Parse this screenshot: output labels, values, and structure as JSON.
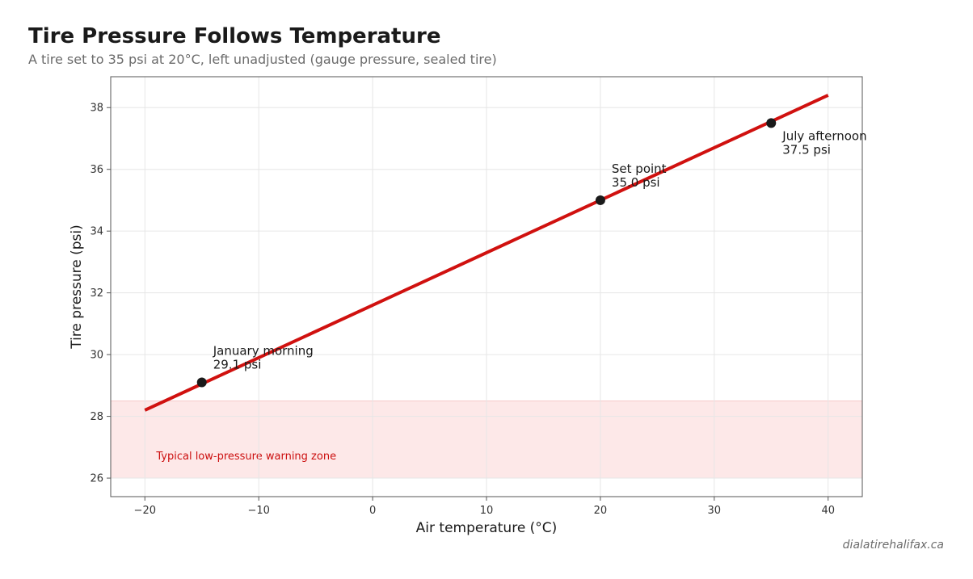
{
  "header": {
    "title": "Tire Pressure Follows Temperature",
    "subtitle": "A tire set to 35 psi at 20°C, left unadjusted (gauge pressure, sealed tire)"
  },
  "footer": {
    "source": "dialatirehalifax.ca"
  },
  "colors": {
    "line": "#d0110f",
    "point": "#1a1a1a",
    "zone_fill": "#fde8e8",
    "zone_text": "#cc0f0f",
    "grid": "#e6e6e6",
    "axis": "#555555"
  },
  "chart_data": {
    "type": "line",
    "title": "Tire Pressure Follows Temperature",
    "xlabel": "Air temperature (°C)",
    "ylabel": "Tire pressure (psi)",
    "xlim": [
      -23,
      43
    ],
    "ylim": [
      25.4,
      39
    ],
    "xticks": [
      -20,
      -10,
      0,
      10,
      20,
      30,
      40
    ],
    "xtick_labels": [
      "−20",
      "−10",
      "0",
      "10",
      "20",
      "30",
      "40"
    ],
    "yticks": [
      26,
      28,
      30,
      32,
      34,
      36,
      38
    ],
    "ytick_labels": [
      "26",
      "28",
      "30",
      "32",
      "34",
      "36",
      "38"
    ],
    "grid": true,
    "series": [
      {
        "x": [
          -20,
          40
        ],
        "y": [
          28.2,
          38.4
        ]
      }
    ],
    "points": [
      {
        "x": -15,
        "y": 29.1,
        "label": "January morning",
        "value": "29.1 psi"
      },
      {
        "x": 20,
        "y": 35.0,
        "label": "Set point",
        "value": "35.0 psi"
      },
      {
        "x": 35,
        "y": 37.5,
        "label": "July afternoon",
        "value": "37.5 psi"
      }
    ],
    "band": {
      "y_from": 26,
      "y_to": 28.5,
      "label": "Typical low-pressure warning zone"
    }
  }
}
